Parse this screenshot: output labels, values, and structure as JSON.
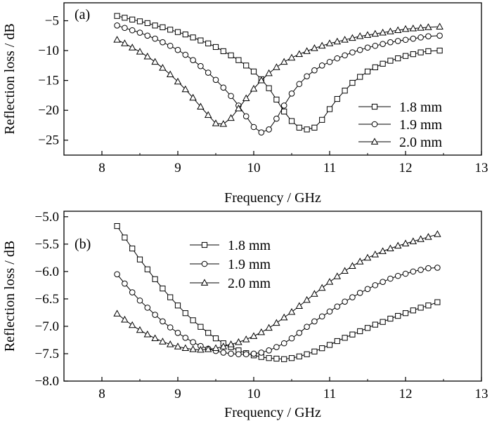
{
  "chart_data": [
    {
      "type": "line",
      "panel_label": "(a)",
      "xlabel": "Frequency / GHz",
      "ylabel": "Reflection loss / dB",
      "xlim": [
        7.5,
        13
      ],
      "ylim": [
        -27.5,
        -2
      ],
      "xticks": [
        8,
        9,
        10,
        11,
        12,
        13
      ],
      "yticks": [
        -5,
        -10,
        -15,
        -20,
        -25
      ],
      "legend_position": "lower-right",
      "series": [
        {
          "name": "1.8 mm",
          "marker": "square",
          "x": [
            8.2,
            8.3,
            8.4,
            8.5,
            8.6,
            8.7,
            8.8,
            8.9,
            9.0,
            9.1,
            9.2,
            9.3,
            9.4,
            9.5,
            9.6,
            9.7,
            9.8,
            9.9,
            10.0,
            10.1,
            10.2,
            10.3,
            10.4,
            10.5,
            10.6,
            10.7,
            10.8,
            10.9,
            11.0,
            11.1,
            11.2,
            11.3,
            11.4,
            11.5,
            11.6,
            11.7,
            11.8,
            11.9,
            12.0,
            12.1,
            12.2,
            12.3,
            12.45
          ],
          "y": [
            -4.2,
            -4.5,
            -4.8,
            -5.1,
            -5.4,
            -5.8,
            -6.1,
            -6.5,
            -6.9,
            -7.3,
            -7.8,
            -8.3,
            -8.8,
            -9.4,
            -10.1,
            -10.8,
            -11.6,
            -12.5,
            -13.5,
            -14.8,
            -16.3,
            -18.2,
            -20.2,
            -21.8,
            -22.9,
            -23.2,
            -22.9,
            -21.6,
            -19.8,
            -18.1,
            -16.7,
            -15.4,
            -14.4,
            -13.5,
            -12.8,
            -12.2,
            -11.7,
            -11.3,
            -10.9,
            -10.6,
            -10.3,
            -10.1,
            -10.0
          ]
        },
        {
          "name": "1.9 mm",
          "marker": "circle",
          "x": [
            8.2,
            8.3,
            8.4,
            8.5,
            8.6,
            8.7,
            8.8,
            8.9,
            9.0,
            9.1,
            9.2,
            9.3,
            9.4,
            9.5,
            9.6,
            9.7,
            9.8,
            9.9,
            10.0,
            10.1,
            10.2,
            10.3,
            10.4,
            10.5,
            10.6,
            10.7,
            10.8,
            10.9,
            11.0,
            11.1,
            11.2,
            11.3,
            11.4,
            11.5,
            11.6,
            11.7,
            11.8,
            11.9,
            12.0,
            12.1,
            12.2,
            12.3,
            12.45
          ],
          "y": [
            -5.8,
            -6.2,
            -6.6,
            -7.0,
            -7.5,
            -8.0,
            -8.6,
            -9.2,
            -9.9,
            -10.7,
            -11.6,
            -12.6,
            -13.7,
            -14.9,
            -16.2,
            -17.6,
            -19.2,
            -21.0,
            -22.8,
            -23.7,
            -23.2,
            -21.4,
            -19.2,
            -17.2,
            -15.6,
            -14.3,
            -13.3,
            -12.5,
            -11.9,
            -11.3,
            -10.8,
            -10.3,
            -9.9,
            -9.5,
            -9.2,
            -8.9,
            -8.6,
            -8.4,
            -8.2,
            -8.0,
            -7.8,
            -7.6,
            -7.5
          ]
        },
        {
          "name": "2.0 mm",
          "marker": "triangle",
          "x": [
            8.2,
            8.3,
            8.4,
            8.5,
            8.6,
            8.7,
            8.8,
            8.9,
            9.0,
            9.1,
            9.2,
            9.3,
            9.4,
            9.5,
            9.6,
            9.7,
            9.8,
            9.9,
            10.0,
            10.1,
            10.2,
            10.3,
            10.4,
            10.5,
            10.6,
            10.7,
            10.8,
            10.9,
            11.0,
            11.1,
            11.2,
            11.3,
            11.4,
            11.5,
            11.6,
            11.7,
            11.8,
            11.9,
            12.0,
            12.1,
            12.2,
            12.3,
            12.45
          ],
          "y": [
            -8.2,
            -8.8,
            -9.5,
            -10.2,
            -11.0,
            -11.9,
            -12.9,
            -14.0,
            -15.2,
            -16.5,
            -17.9,
            -19.4,
            -20.8,
            -22.2,
            -22.3,
            -21.3,
            -19.7,
            -18.0,
            -16.4,
            -15.0,
            -13.8,
            -12.8,
            -11.9,
            -11.2,
            -10.6,
            -10.1,
            -9.6,
            -9.2,
            -8.8,
            -8.5,
            -8.2,
            -7.9,
            -7.6,
            -7.4,
            -7.2,
            -7.0,
            -6.8,
            -6.6,
            -6.4,
            -6.3,
            -6.2,
            -6.1,
            -6.0
          ]
        }
      ]
    },
    {
      "type": "line",
      "panel_label": "(b)",
      "xlabel": "Frequency / GHz",
      "ylabel": "Reflection loss / dB",
      "xlim": [
        7.5,
        13
      ],
      "ylim": [
        -8.0,
        -4.9
      ],
      "xticks": [
        8,
        9,
        10,
        11,
        12,
        13
      ],
      "yticks": [
        -5.0,
        -5.5,
        -6.0,
        -6.5,
        -7.0,
        -7.5,
        -8.0
      ],
      "legend_position": "top-left",
      "series": [
        {
          "name": "1.8 mm",
          "marker": "square",
          "x": [
            8.2,
            8.3,
            8.4,
            8.5,
            8.6,
            8.7,
            8.8,
            8.9,
            9.0,
            9.1,
            9.2,
            9.3,
            9.4,
            9.5,
            9.6,
            9.7,
            9.8,
            9.9,
            10.0,
            10.1,
            10.2,
            10.3,
            10.4,
            10.5,
            10.6,
            10.7,
            10.8,
            10.9,
            11.0,
            11.1,
            11.2,
            11.3,
            11.4,
            11.5,
            11.6,
            11.7,
            11.8,
            11.9,
            12.0,
            12.1,
            12.2,
            12.3,
            12.42
          ],
          "y": [
            -5.17,
            -5.38,
            -5.58,
            -5.78,
            -5.96,
            -6.14,
            -6.31,
            -6.47,
            -6.62,
            -6.76,
            -6.89,
            -7.01,
            -7.12,
            -7.22,
            -7.31,
            -7.38,
            -7.44,
            -7.49,
            -7.53,
            -7.56,
            -7.58,
            -7.59,
            -7.6,
            -7.58,
            -7.55,
            -7.51,
            -7.46,
            -7.4,
            -7.34,
            -7.27,
            -7.21,
            -7.15,
            -7.09,
            -7.03,
            -6.97,
            -6.92,
            -6.86,
            -6.81,
            -6.76,
            -6.71,
            -6.66,
            -6.62,
            -6.56
          ]
        },
        {
          "name": "1.9 mm",
          "marker": "circle",
          "x": [
            8.2,
            8.3,
            8.4,
            8.5,
            8.6,
            8.7,
            8.8,
            8.9,
            9.0,
            9.1,
            9.2,
            9.3,
            9.4,
            9.5,
            9.6,
            9.7,
            9.8,
            9.9,
            10.0,
            10.1,
            10.2,
            10.3,
            10.4,
            10.5,
            10.6,
            10.7,
            10.8,
            10.9,
            11.0,
            11.1,
            11.2,
            11.3,
            11.4,
            11.5,
            11.6,
            11.7,
            11.8,
            11.9,
            12.0,
            12.1,
            12.2,
            12.3,
            12.42
          ],
          "y": [
            -6.05,
            -6.22,
            -6.38,
            -6.53,
            -6.66,
            -6.79,
            -6.91,
            -7.02,
            -7.12,
            -7.21,
            -7.29,
            -7.36,
            -7.41,
            -7.45,
            -7.48,
            -7.5,
            -7.51,
            -7.51,
            -7.5,
            -7.48,
            -7.44,
            -7.38,
            -7.31,
            -7.22,
            -7.12,
            -7.01,
            -6.91,
            -6.82,
            -6.73,
            -6.64,
            -6.55,
            -6.47,
            -6.39,
            -6.32,
            -6.25,
            -6.19,
            -6.13,
            -6.08,
            -6.04,
            -6.0,
            -5.97,
            -5.94,
            -5.93
          ]
        },
        {
          "name": "2.0 mm",
          "marker": "triangle",
          "x": [
            8.2,
            8.3,
            8.4,
            8.5,
            8.6,
            8.7,
            8.8,
            8.9,
            9.0,
            9.1,
            9.2,
            9.3,
            9.4,
            9.5,
            9.6,
            9.7,
            9.8,
            9.9,
            10.0,
            10.1,
            10.2,
            10.3,
            10.4,
            10.5,
            10.6,
            10.7,
            10.8,
            10.9,
            11.0,
            11.1,
            11.2,
            11.3,
            11.4,
            11.5,
            11.6,
            11.7,
            11.8,
            11.9,
            12.0,
            12.1,
            12.2,
            12.3,
            12.42
          ],
          "y": [
            -6.77,
            -6.88,
            -6.98,
            -7.07,
            -7.15,
            -7.22,
            -7.28,
            -7.33,
            -7.37,
            -7.4,
            -7.42,
            -7.43,
            -7.42,
            -7.4,
            -7.37,
            -7.33,
            -7.29,
            -7.24,
            -7.18,
            -7.11,
            -7.03,
            -6.94,
            -6.84,
            -6.74,
            -6.63,
            -6.52,
            -6.41,
            -6.3,
            -6.19,
            -6.09,
            -5.99,
            -5.9,
            -5.82,
            -5.75,
            -5.69,
            -5.63,
            -5.58,
            -5.53,
            -5.49,
            -5.45,
            -5.41,
            -5.37,
            -5.32
          ]
        }
      ]
    }
  ]
}
